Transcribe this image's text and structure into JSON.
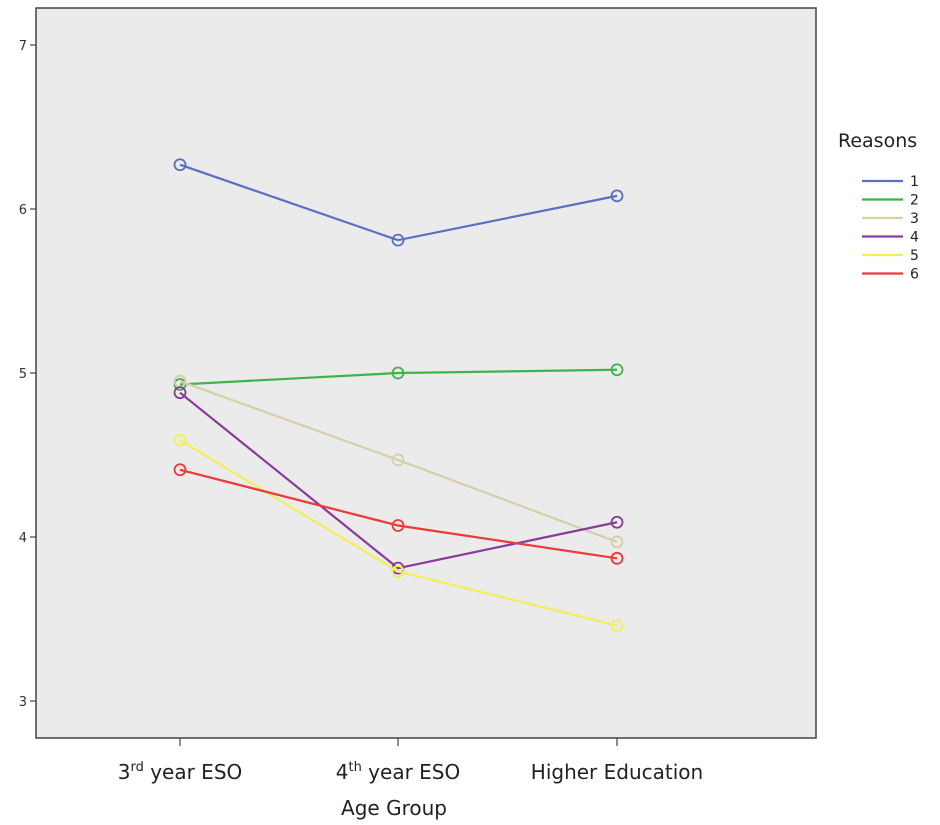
{
  "chart_data": {
    "type": "line",
    "xlabel": "Age Group",
    "ylabel": "",
    "ylim": [
      3,
      7
    ],
    "yticks": [
      3,
      4,
      5,
      6,
      7
    ],
    "categories": [
      {
        "main": "3",
        "sup": "rd",
        "rest": " year ESO"
      },
      {
        "main": "4",
        "sup": "th",
        "rest": " year ESO"
      },
      {
        "main": "Higher Education",
        "sup": "",
        "rest": ""
      }
    ],
    "legend": {
      "title": "Reasons",
      "position": "right"
    },
    "grid": false,
    "background": "#ebebeb",
    "series": [
      {
        "name": "1",
        "color": "#5b6fc4",
        "values": [
          6.27,
          5.81,
          6.08
        ]
      },
      {
        "name": "2",
        "color": "#3fb34a",
        "values": [
          4.93,
          5.0,
          5.02
        ]
      },
      {
        "name": "3",
        "color": "#d6cfa8",
        "values": [
          4.95,
          4.47,
          3.97
        ]
      },
      {
        "name": "4",
        "color": "#8a3a9a",
        "values": [
          4.88,
          3.81,
          4.09
        ]
      },
      {
        "name": "5",
        "color": "#f3ef5a",
        "values": [
          4.59,
          3.79,
          3.46
        ]
      },
      {
        "name": "6",
        "color": "#ea3b3b",
        "values": [
          4.41,
          4.07,
          3.87
        ]
      }
    ]
  }
}
